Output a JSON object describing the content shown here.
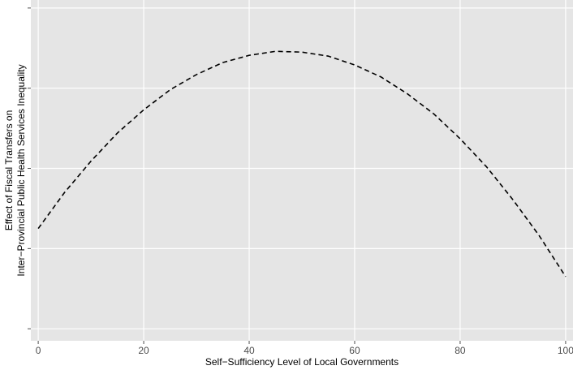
{
  "chart_data": {
    "type": "line",
    "x_label": "Self−Sufficiency Level of Local Governments",
    "y_label": [
      "Effect of Fiscal Transfers on",
      "Inter−Provincial Public Health Services Inequality"
    ],
    "x": [
      0,
      5,
      10,
      15,
      20,
      25,
      30,
      35,
      40,
      45,
      50,
      55,
      60,
      65,
      70,
      75,
      80,
      85,
      90,
      95,
      100
    ],
    "series": [
      {
        "color": "#000000",
        "dash": true,
        "values": [
          1.25,
          1.7,
          2.09,
          2.44,
          2.73,
          2.98,
          3.17,
          3.32,
          3.41,
          3.46,
          3.45,
          3.4,
          3.29,
          3.14,
          2.93,
          2.68,
          2.37,
          2.02,
          1.61,
          1.16,
          0.65
        ]
      }
    ],
    "xlim": [
      -1.4,
      101.4
    ],
    "xticks": [
      0,
      20,
      40,
      60,
      80,
      100
    ],
    "ylim": [
      -0.15,
      4.1
    ],
    "yticks": [
      0,
      1,
      2,
      3,
      4
    ],
    "ytick_labels": false,
    "grid": true
  }
}
